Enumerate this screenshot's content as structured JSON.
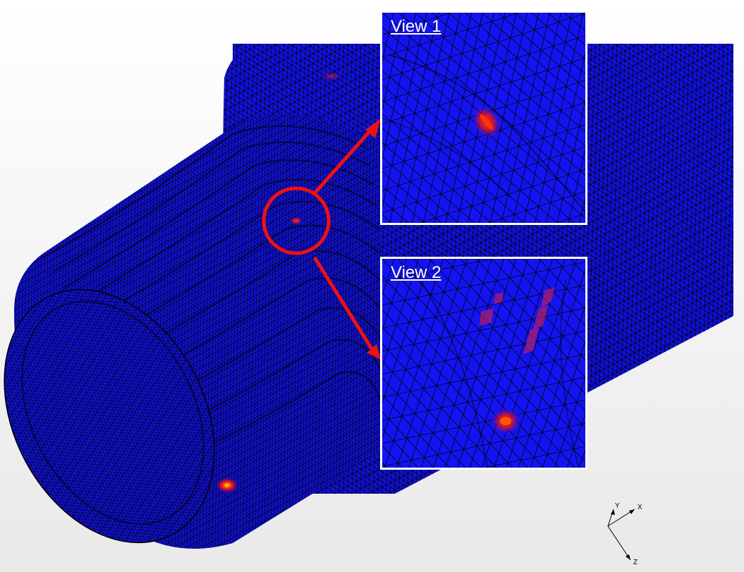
{
  "insets": {
    "view1": {
      "label": "View 1"
    },
    "view2": {
      "label": "View 2"
    }
  },
  "triad": {
    "x_label": "X",
    "y_label": "Y",
    "z_label": "Z"
  },
  "colors": {
    "mesh_fill": "#1010ee",
    "mesh_line": "#000000",
    "hotspot_core": "#ffee33",
    "hotspot_mid": "#ff2a00",
    "callout": "#ee1111",
    "inset_border": "#ffffff"
  }
}
